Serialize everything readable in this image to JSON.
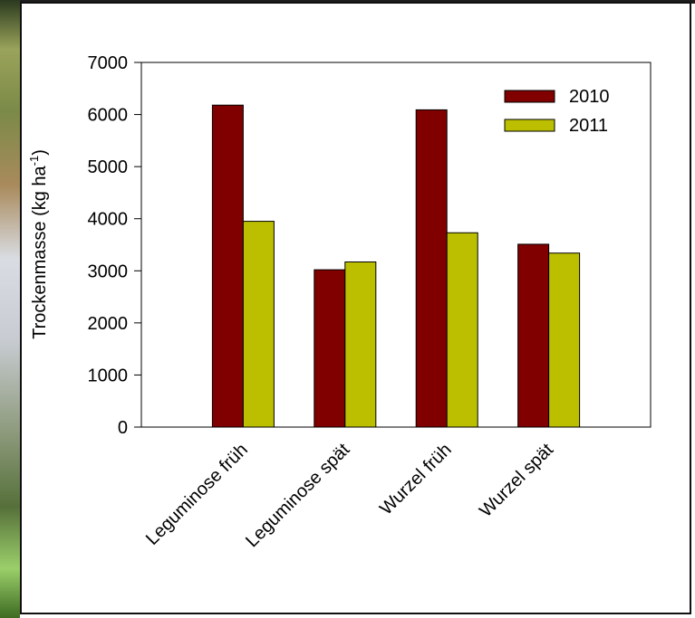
{
  "chart_data": {
    "type": "bar",
    "categories": [
      "Leguminose früh",
      "Leguminose spät",
      "Wurzel früh",
      "Wurzel spät"
    ],
    "series": [
      {
        "name": "2010",
        "color": "#800000",
        "values": [
          6180,
          3020,
          6090,
          3510
        ]
      },
      {
        "name": "2011",
        "color": "#bcbf00",
        "values": [
          3950,
          3170,
          3730,
          3340
        ]
      }
    ],
    "ylabel_main": "Trockenmasse (kg ha",
    "ylabel_sup": "-1",
    "ylabel_close": ")",
    "ylim": [
      0,
      7000
    ],
    "yticks": [
      "0",
      "1000",
      "2000",
      "3000",
      "4000",
      "5000",
      "6000",
      "7000"
    ],
    "legend_position": "top-right",
    "grid": false
  }
}
